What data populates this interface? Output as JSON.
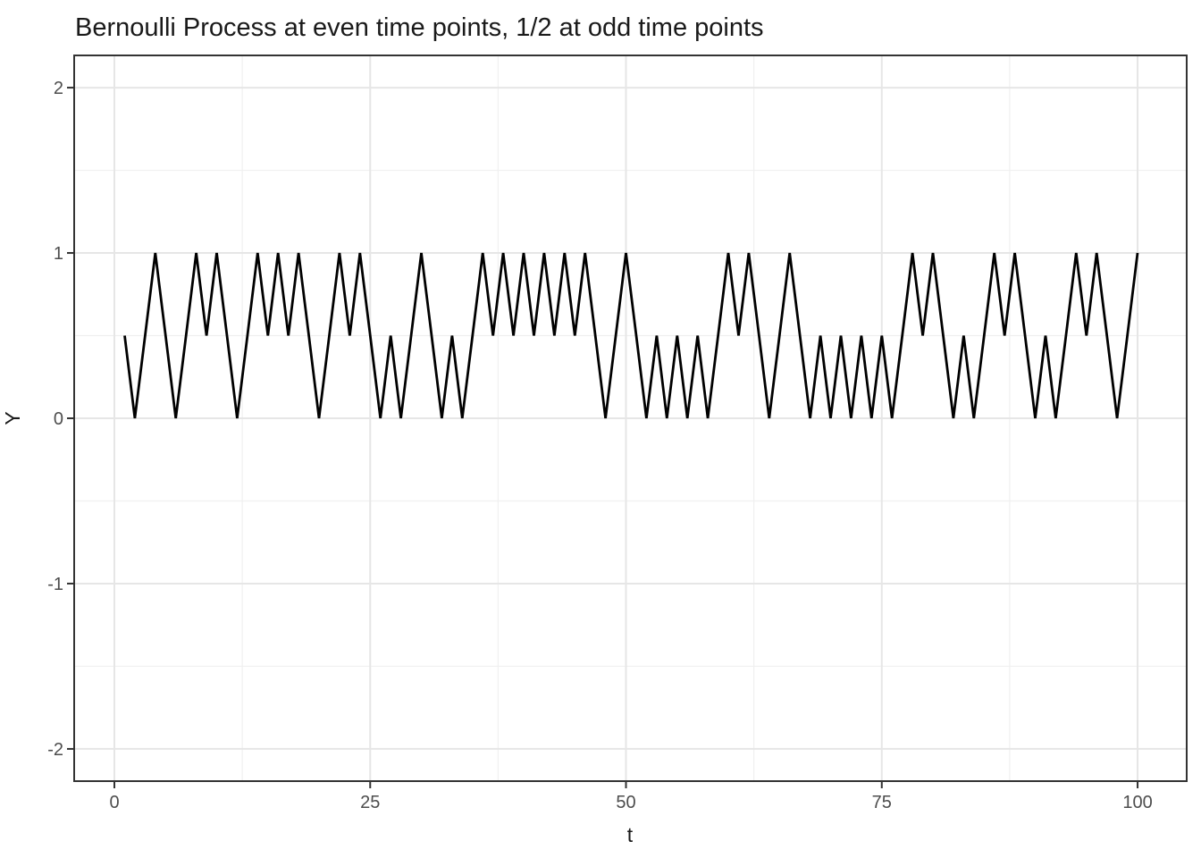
{
  "window": {
    "title": "Bernoulli Process plot"
  },
  "colors": {
    "background": "#ffffff",
    "panel_background": "#ffffff",
    "line": "#000000",
    "grid_major": "#e6e6e6",
    "grid_minor": "#f0f0f0",
    "panel_border": "#333333",
    "tick_mark": "#333333",
    "tick_label": "#4d4d4d",
    "title_text": "#1a1a1a",
    "axis_title_text": "#1a1a1a"
  },
  "chart_data": {
    "type": "line",
    "title": "Bernoulli Process at even time points, 1/2 at odd time points",
    "xlabel": "t",
    "ylabel": "Y",
    "legend": "none",
    "grid": true,
    "x_ticks": [
      0,
      25,
      50,
      75,
      100
    ],
    "y_ticks": [
      -2,
      -1,
      0,
      1,
      2
    ],
    "x_minor_ticks": [
      12.5,
      37.5,
      62.5,
      87.5
    ],
    "y_minor_ticks": [
      -1.5,
      -0.5,
      0.5,
      1.5
    ],
    "x_range": [
      -3.93,
      104.8
    ],
    "y_range": [
      -2.195,
      2.195
    ],
    "description": "Y equals 0.5 at every odd t; Y is a Bernoulli outcome (0 or 1) at every even t",
    "x": [
      1,
      2,
      3,
      4,
      5,
      6,
      7,
      8,
      9,
      10,
      11,
      12,
      13,
      14,
      15,
      16,
      17,
      18,
      19,
      20,
      21,
      22,
      23,
      24,
      25,
      26,
      27,
      28,
      29,
      30,
      31,
      32,
      33,
      34,
      35,
      36,
      37,
      38,
      39,
      40,
      41,
      42,
      43,
      44,
      45,
      46,
      47,
      48,
      49,
      50,
      51,
      52,
      53,
      54,
      55,
      56,
      57,
      58,
      59,
      60,
      61,
      62,
      63,
      64,
      65,
      66,
      67,
      68,
      69,
      70,
      71,
      72,
      73,
      74,
      75,
      76,
      77,
      78,
      79,
      80,
      81,
      82,
      83,
      84,
      85,
      86,
      87,
      88,
      89,
      90,
      91,
      92,
      93,
      94,
      95,
      96,
      97,
      98,
      99,
      100
    ],
    "y": [
      0.5,
      0,
      0.5,
      1,
      0.5,
      0,
      0.5,
      1,
      0.5,
      1,
      0.5,
      0,
      0.5,
      1,
      0.5,
      1,
      0.5,
      1,
      0.5,
      0,
      0.5,
      1,
      0.5,
      1,
      0.5,
      0,
      0.5,
      0,
      0.5,
      1,
      0.5,
      0,
      0.5,
      0,
      0.5,
      1,
      0.5,
      1,
      0.5,
      1,
      0.5,
      1,
      0.5,
      1,
      0.5,
      1,
      0.5,
      0,
      0.5,
      1,
      0.5,
      0,
      0.5,
      0,
      0.5,
      0,
      0.5,
      0,
      0.5,
      1,
      0.5,
      1,
      0.5,
      0,
      0.5,
      1,
      0.5,
      0,
      0.5,
      0,
      0.5,
      0,
      0.5,
      0,
      0.5,
      0,
      0.5,
      1,
      0.5,
      1,
      0.5,
      0,
      0.5,
      0,
      0.5,
      1,
      0.5,
      1,
      0.5,
      0,
      0.5,
      0,
      0.5,
      1,
      0.5,
      1,
      0.5,
      0,
      0.5,
      1
    ]
  }
}
